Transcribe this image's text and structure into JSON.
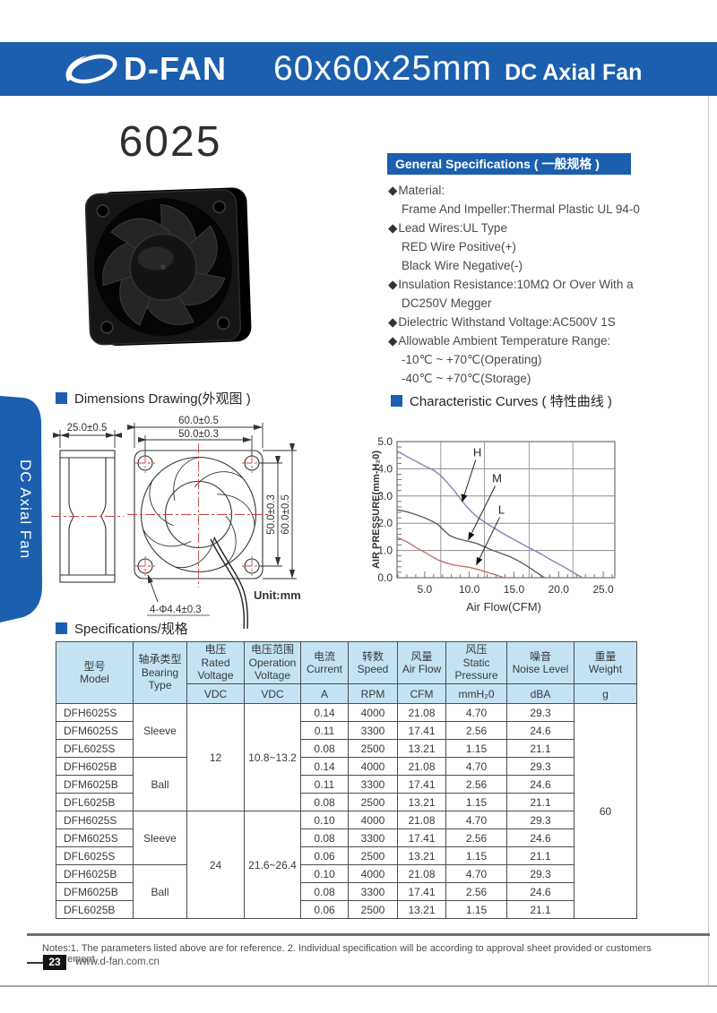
{
  "header": {
    "brand": "D-FAN",
    "size_title": "60x60x25mm",
    "product_title": "DC Axial Fan"
  },
  "side_tab": {
    "label": "DC Axial Fan"
  },
  "model_number": "6025",
  "sections": {
    "general": "General Specifications ( 一般规格 )",
    "dimensions": "Dimensions Drawing(外观图 )",
    "curves": "Characteristic Curves ( 特性曲线 )",
    "specs": "Specifications/规格"
  },
  "general_specs": {
    "items": [
      {
        "bullet": true,
        "text": "Material:"
      },
      {
        "bullet": false,
        "text": "Frame And Impeller:Thermal Plastic UL 94-0"
      },
      {
        "bullet": true,
        "text": "Lead Wires:UL Type"
      },
      {
        "bullet": false,
        "text": "RED Wire Positive(+)"
      },
      {
        "bullet": false,
        "text": "Black Wire Negative(-)"
      },
      {
        "bullet": true,
        "text": "Insulation Resistance:10MΩ Or Over With a"
      },
      {
        "bullet": false,
        "text": "DC250V Megger"
      },
      {
        "bullet": true,
        "text": "Dielectric Withstand Voltage:AC500V 1S"
      },
      {
        "bullet": true,
        "text": "Allowable Ambient Temperature Range:"
      },
      {
        "bullet": false,
        "text": "-10℃ ~ +70℃(Operating)"
      },
      {
        "bullet": false,
        "text": "-40℃ ~ +70℃(Storage)"
      }
    ]
  },
  "dimensions": {
    "depth": "25.0±0.5",
    "width_outer": "60.0±0.5",
    "width_holes": "50.0±0.3",
    "height_holes": "50.0±0.3",
    "height_outer": "60.0±0.5",
    "holes": "4-Φ4.4±0.3",
    "unit": "Unit:mm"
  },
  "chart_data": {
    "type": "line",
    "title": "Characteristic Curves ( 特性曲线 )",
    "xlabel": "Air Flow(CFM)",
    "ylabel": "AIR PRESSURE(mm-H₂0)",
    "xlim": [
      1.9,
      26.3
    ],
    "ylim": [
      0,
      5
    ],
    "x_ticks": [
      5.0,
      10.0,
      15.0,
      20.0,
      25.0
    ],
    "y_ticks": [
      0.0,
      1.0,
      2.0,
      3.0,
      4.0,
      5.0
    ],
    "x_grid": [
      6.8,
      11.7,
      16.7,
      21.6
    ],
    "y_grid": [
      1,
      2,
      3,
      4
    ],
    "grid": true,
    "series": [
      {
        "name": "H",
        "color_key": "curve_h",
        "points": [
          [
            1.9,
            4.65
          ],
          [
            3,
            4.45
          ],
          [
            4,
            4.28
          ],
          [
            5,
            4.1
          ],
          [
            6,
            3.95
          ],
          [
            6.8,
            3.75
          ],
          [
            7.5,
            3.5
          ],
          [
            8.3,
            3.2
          ],
          [
            9,
            2.9
          ],
          [
            9.6,
            2.65
          ],
          [
            10.3,
            2.4
          ],
          [
            11,
            2.2
          ],
          [
            12,
            1.98
          ],
          [
            13,
            1.78
          ],
          [
            14,
            1.58
          ],
          [
            15,
            1.4
          ],
          [
            16,
            1.22
          ],
          [
            17,
            1.05
          ],
          [
            18,
            0.88
          ],
          [
            19,
            0.68
          ],
          [
            20,
            0.5
          ],
          [
            21,
            0.32
          ],
          [
            22,
            0.12
          ],
          [
            22.7,
            0
          ]
        ]
      },
      {
        "name": "M",
        "color_key": "curve_m",
        "points": [
          [
            1.9,
            2.5
          ],
          [
            3,
            2.42
          ],
          [
            4,
            2.32
          ],
          [
            5,
            2.2
          ],
          [
            6,
            2.05
          ],
          [
            6.6,
            1.92
          ],
          [
            7.2,
            1.72
          ],
          [
            7.8,
            1.55
          ],
          [
            8.5,
            1.45
          ],
          [
            9.3,
            1.38
          ],
          [
            10,
            1.33
          ],
          [
            10.8,
            1.26
          ],
          [
            11.5,
            1.16
          ],
          [
            12.5,
            1.02
          ],
          [
            13.5,
            0.9
          ],
          [
            14.5,
            0.78
          ],
          [
            15.5,
            0.62
          ],
          [
            16.5,
            0.42
          ],
          [
            17.5,
            0.2
          ],
          [
            18.4,
            0
          ]
        ]
      },
      {
        "name": "L",
        "color_key": "curve_l",
        "points": [
          [
            1.9,
            1.48
          ],
          [
            3,
            1.32
          ],
          [
            4,
            1.12
          ],
          [
            5,
            0.93
          ],
          [
            5.8,
            0.78
          ],
          [
            6.5,
            0.65
          ],
          [
            7.3,
            0.55
          ],
          [
            8.2,
            0.47
          ],
          [
            9,
            0.43
          ],
          [
            10,
            0.38
          ],
          [
            11,
            0.3
          ],
          [
            12,
            0.2
          ],
          [
            13,
            0.1
          ],
          [
            13.9,
            0
          ]
        ]
      }
    ],
    "labels": [
      {
        "text": "H",
        "x": 10.9,
        "y": 4.45,
        "tip": [
          9.2,
          2.8
        ]
      },
      {
        "text": "M",
        "x": 13.1,
        "y": 3.5,
        "tip": [
          9.9,
          1.4
        ]
      },
      {
        "text": "L",
        "x": 13.6,
        "y": 2.35,
        "tip": [
          10.8,
          0.48
        ]
      }
    ]
  },
  "table": {
    "col_headers": [
      {
        "zh": "型号",
        "en": "Model",
        "unit": ""
      },
      {
        "zh": "轴承类型",
        "en": "Bearing Type",
        "unit": ""
      },
      {
        "zh": "电压",
        "en": "Rated Voltage",
        "unit": "VDC"
      },
      {
        "zh": "电压范围",
        "en": "Operation Voltage",
        "unit": "VDC"
      },
      {
        "zh": "电流",
        "en": "Current",
        "unit": "A"
      },
      {
        "zh": "转数",
        "en": "Speed",
        "unit": "RPM"
      },
      {
        "zh": "风量",
        "en": "Air Flow",
        "unit": "CFM"
      },
      {
        "zh": "风压",
        "en": "Static Pressure",
        "unit": "mmH₂0"
      },
      {
        "zh": "噪音",
        "en": "Noise Level",
        "unit": "dBA"
      },
      {
        "zh": "重量",
        "en": "Weight",
        "unit": "g"
      }
    ],
    "bearing_labels": [
      "Sleeve",
      "Ball"
    ],
    "voltage_blocks": [
      {
        "rated": "12",
        "range": "10.8~13.2"
      },
      {
        "rated": "24",
        "range": "21.6~26.4"
      }
    ],
    "weight": "60",
    "rows": [
      {
        "model": "DFH6025S",
        "current": "0.14",
        "speed": "4000",
        "airflow": "21.08",
        "pressure": "4.70",
        "noise": "29.3"
      },
      {
        "model": "DFM6025S",
        "current": "0.11",
        "speed": "3300",
        "airflow": "17.41",
        "pressure": "2.56",
        "noise": "24.6"
      },
      {
        "model": "DFL6025S",
        "current": "0.08",
        "speed": "2500",
        "airflow": "13.21",
        "pressure": "1.15",
        "noise": "21.1"
      },
      {
        "model": "DFH6025B",
        "current": "0.14",
        "speed": "4000",
        "airflow": "21.08",
        "pressure": "4.70",
        "noise": "29.3"
      },
      {
        "model": "DFM6025B",
        "current": "0.11",
        "speed": "3300",
        "airflow": "17.41",
        "pressure": "2.56",
        "noise": "24.6"
      },
      {
        "model": "DFL6025B",
        "current": "0.08",
        "speed": "2500",
        "airflow": "13.21",
        "pressure": "1.15",
        "noise": "21.1"
      },
      {
        "model": "DFH6025S",
        "current": "0.10",
        "speed": "4000",
        "airflow": "21.08",
        "pressure": "4.70",
        "noise": "29.3"
      },
      {
        "model": "DFM6025S",
        "current": "0.08",
        "speed": "3300",
        "airflow": "17.41",
        "pressure": "2.56",
        "noise": "24.6"
      },
      {
        "model": "DFL6025S",
        "current": "0.06",
        "speed": "2500",
        "airflow": "13.21",
        "pressure": "1.15",
        "noise": "21.1"
      },
      {
        "model": "DFH6025B",
        "current": "0.10",
        "speed": "4000",
        "airflow": "21.08",
        "pressure": "4.70",
        "noise": "29.3"
      },
      {
        "model": "DFM6025B",
        "current": "0.08",
        "speed": "3300",
        "airflow": "17.41",
        "pressure": "2.56",
        "noise": "24.6"
      },
      {
        "model": "DFL6025B",
        "current": "0.06",
        "speed": "2500",
        "airflow": "13.21",
        "pressure": "1.15",
        "noise": "21.1"
      }
    ]
  },
  "notes": "Notes:1. The parameters listed above are for reference.   2. Individual specification will be according to approval sheet provided or customers requirement.",
  "footer": {
    "page": "23",
    "website": "www.d-fan.com.cn"
  },
  "colors": {
    "brand_blue": "#1b5fae",
    "table_header_blue": "#c3e3f3",
    "curve_h": "#8283b6",
    "curve_m": "#5f5f63",
    "curve_l": "#c4706f",
    "drawing_red": "#cc4442"
  }
}
